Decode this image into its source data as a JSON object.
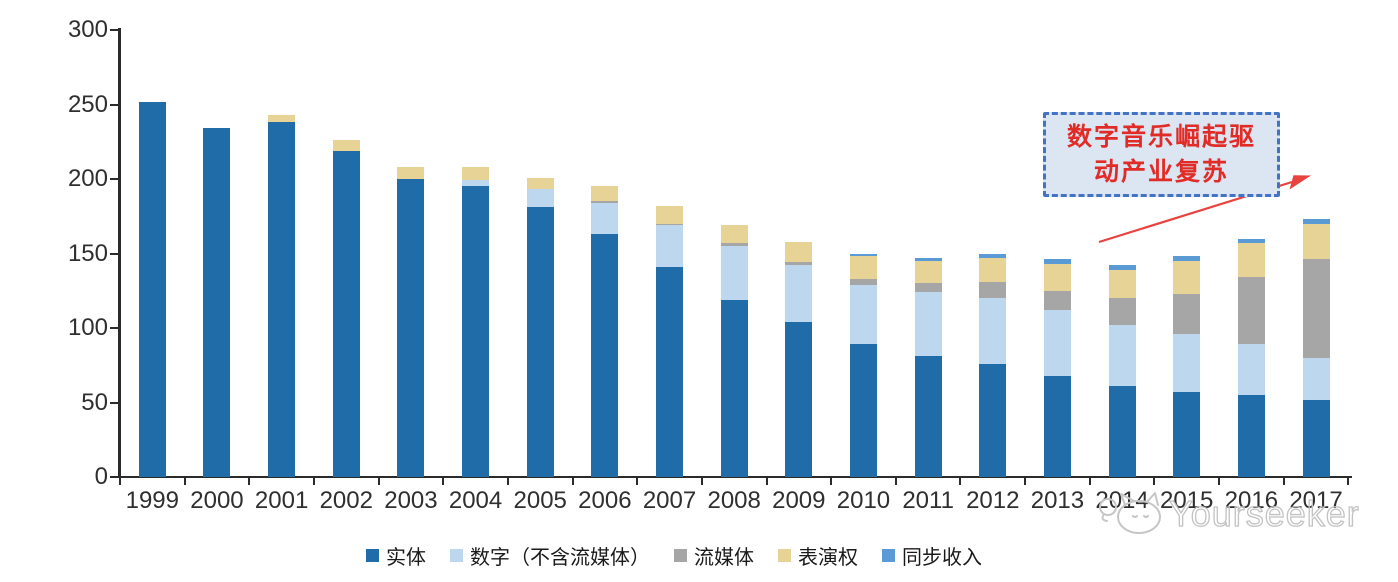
{
  "chart_data": {
    "type": "bar",
    "stacked": true,
    "categories": [
      "1999",
      "2000",
      "2001",
      "2002",
      "2003",
      "2004",
      "2005",
      "2006",
      "2007",
      "2008",
      "2009",
      "2010",
      "2011",
      "2012",
      "2013",
      "2014",
      "2015",
      "2016",
      "2017"
    ],
    "series": [
      {
        "name": "实体",
        "color": "#1f6ca9",
        "values": [
          252,
          234,
          238,
          219,
          200,
          195,
          181,
          163,
          141,
          119,
          104,
          89,
          81,
          76,
          68,
          61,
          57,
          55,
          52
        ]
      },
      {
        "name": "数字（不含流媒体）",
        "color": "#bdd7ee",
        "values": [
          0,
          0,
          0,
          0,
          0,
          4,
          12,
          21,
          28,
          36,
          38,
          40,
          43,
          44,
          44,
          41,
          39,
          34,
          28
        ]
      },
      {
        "name": "流媒体",
        "color": "#a6a6a6",
        "values": [
          0,
          0,
          0,
          0,
          0,
          0,
          0,
          1,
          1,
          2,
          2,
          4,
          6,
          11,
          13,
          18,
          27,
          45,
          66
        ]
      },
      {
        "name": "表演权",
        "color": "#e7d395",
        "values": [
          0,
          0,
          5,
          7,
          8,
          9,
          8,
          10,
          12,
          12,
          14,
          15,
          15,
          16,
          18,
          19,
          22,
          23,
          24
        ]
      },
      {
        "name": "同步收入",
        "color": "#5b9bd5",
        "values": [
          0,
          0,
          0,
          0,
          0,
          0,
          0,
          0,
          0,
          0,
          0,
          2,
          2,
          3,
          3,
          3,
          3,
          3,
          3
        ]
      }
    ],
    "ylim": [
      0,
      300
    ],
    "yticks": [
      0,
      50,
      100,
      150,
      200,
      250,
      300
    ],
    "xlabel": "",
    "ylabel": "",
    "title": "",
    "grid": false,
    "legend_position": "bottom"
  },
  "annotation": {
    "line1": "数字音乐崛起驱",
    "line2": "动产业复苏",
    "text_color": "#e12b26",
    "border_color": "#4472c4",
    "fill_color": "#dbe6f2",
    "arrow_color": "#e8433e"
  },
  "watermark": {
    "text": "Yourseeker"
  }
}
